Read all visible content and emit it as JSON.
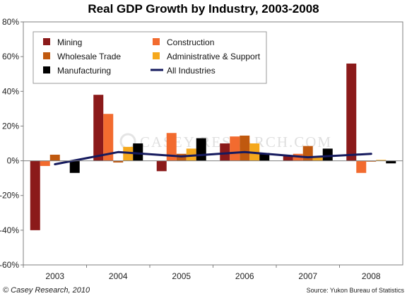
{
  "chart_data": {
    "type": "bar",
    "title": "Real GDP Growth by Industry, 2003-2008",
    "categories": [
      "2003",
      "2004",
      "2005",
      "2006",
      "2007",
      "2008"
    ],
    "ylim": [
      -60,
      80
    ],
    "yticks": [
      -60,
      -40,
      -20,
      0,
      20,
      40,
      60,
      80
    ],
    "ytick_labels": [
      "-60%",
      "-40%",
      "-20%",
      "0%",
      "20%",
      "40%",
      "60%",
      "80%"
    ],
    "grid": false,
    "legend_position": "top-inside",
    "series": [
      {
        "name": "Mining",
        "kind": "bar",
        "color": "#8b1a1a",
        "values": [
          -40,
          38,
          -6,
          10,
          3,
          56
        ]
      },
      {
        "name": "Construction",
        "kind": "bar",
        "color": "#f26b2f",
        "values": [
          -3,
          27,
          16,
          14,
          4,
          -7
        ]
      },
      {
        "name": "Wholesale Trade",
        "kind": "bar",
        "color": "#c0590f",
        "values": [
          3.5,
          -1,
          4,
          14.5,
          8.5,
          -0.5
        ]
      },
      {
        "name": "Administrative & Support",
        "kind": "bar",
        "color": "#f5a81c",
        "values": [
          0,
          8,
          7,
          10,
          2,
          0.5
        ]
      },
      {
        "name": "Manufacturing",
        "kind": "bar",
        "color": "#000000",
        "values": [
          -7,
          10,
          13,
          4.5,
          7,
          -1.5
        ]
      },
      {
        "name": "All Industries",
        "kind": "line",
        "color": "#151a5e",
        "values": [
          -2,
          5,
          2.5,
          5,
          2,
          4
        ]
      }
    ]
  },
  "footer": {
    "copyright": "© Casey Research, 2010",
    "source": "Source: Yukon Bureau of Statistics"
  },
  "watermark": "CASEY RESEARCH.COM"
}
